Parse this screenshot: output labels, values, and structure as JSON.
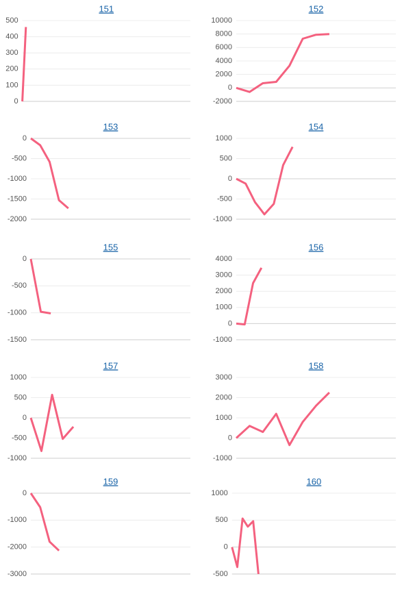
{
  "chart_data": [
    {
      "type": "line",
      "title": "151",
      "color": "#f4617f",
      "grid": true,
      "ylim": [
        0,
        500
      ],
      "yticks": [
        0,
        100,
        200,
        300,
        400,
        500
      ],
      "categories": [
        null,
        null,
        null,
        null,
        null,
        null,
        null,
        null,
        null,
        null,
        null,
        null,
        null,
        null,
        null,
        null,
        null,
        null,
        null,
        null,
        null,
        null,
        null,
        null,
        null,
        null,
        null,
        null,
        null,
        null,
        null,
        null,
        null,
        null,
        null,
        null,
        null,
        null,
        null,
        null,
        null,
        null,
        null,
        null,
        null,
        null,
        null,
        null
      ],
      "values": [
        0,
        460,
        null,
        null,
        null,
        null,
        null,
        null,
        null,
        null,
        null,
        null,
        null,
        null,
        null,
        null,
        null,
        null,
        null,
        null,
        null,
        null,
        null,
        null,
        null,
        null,
        null,
        null,
        null,
        null,
        null,
        null,
        null,
        null,
        null,
        null,
        null,
        null,
        null,
        null,
        null,
        null,
        null,
        null,
        null,
        null,
        null,
        null
      ]
    },
    {
      "type": "line",
      "title": "152",
      "color": "#f4617f",
      "grid": true,
      "ylim": [
        -2000,
        10000
      ],
      "yticks": [
        -2000,
        0,
        2000,
        4000,
        6000,
        8000,
        10000
      ],
      "categories": [
        null,
        null,
        null,
        null,
        null,
        null,
        null,
        null,
        null,
        null,
        null,
        null,
        null
      ],
      "values": [
        0,
        -600,
        700,
        900,
        3300,
        7300,
        7900,
        8000,
        null,
        null,
        null,
        null,
        null
      ]
    },
    {
      "type": "line",
      "title": "153",
      "color": "#f4617f",
      "grid": true,
      "ylim": [
        -2000,
        0
      ],
      "yticks": [
        -2000,
        -1500,
        -1000,
        -500,
        0
      ],
      "categories": [
        null,
        null,
        null,
        null,
        null,
        null,
        null,
        null,
        null,
        null,
        null,
        null,
        null,
        null,
        null,
        null,
        null,
        null
      ],
      "values": [
        0,
        -170,
        -580,
        -1530,
        -1730,
        null,
        null,
        null,
        null,
        null,
        null,
        null,
        null,
        null,
        null,
        null,
        null,
        null
      ]
    },
    {
      "type": "line",
      "title": "154",
      "color": "#f4617f",
      "grid": true,
      "ylim": [
        -1000,
        1000
      ],
      "yticks": [
        -1000,
        -500,
        0,
        500,
        1000
      ],
      "categories": [
        null,
        null,
        null,
        null,
        null,
        null,
        null,
        null,
        null,
        null,
        null,
        null,
        null,
        null,
        null,
        null,
        null,
        null
      ],
      "values": [
        0,
        -120,
        -580,
        -880,
        -620,
        340,
        790,
        null,
        null,
        null,
        null,
        null,
        null,
        null,
        null,
        null,
        null,
        null
      ]
    },
    {
      "type": "line",
      "title": "155",
      "color": "#f4617f",
      "grid": true,
      "ylim": [
        -1500,
        0
      ],
      "yticks": [
        -1500,
        -1000,
        -500,
        0
      ],
      "categories": [
        null,
        null,
        null,
        null,
        null,
        null,
        null,
        null,
        null,
        null,
        null,
        null,
        null,
        null,
        null,
        null,
        null
      ],
      "values": [
        0,
        -980,
        -1010,
        null,
        null,
        null,
        null,
        null,
        null,
        null,
        null,
        null,
        null,
        null,
        null,
        null,
        null
      ]
    },
    {
      "type": "line",
      "title": "156",
      "color": "#f4617f",
      "grid": true,
      "ylim": [
        -1000,
        4000
      ],
      "yticks": [
        -1000,
        0,
        1000,
        2000,
        3000,
        4000
      ],
      "categories": [
        null,
        null,
        null,
        null,
        null,
        null,
        null,
        null,
        null,
        null,
        null,
        null,
        null,
        null,
        null,
        null,
        null,
        null,
        null,
        null
      ],
      "values": [
        0,
        -50,
        2500,
        3450,
        null,
        null,
        null,
        null,
        null,
        null,
        null,
        null,
        null,
        null,
        null,
        null,
        null,
        null,
        null,
        null
      ]
    },
    {
      "type": "line",
      "title": "157",
      "color": "#f4617f",
      "grid": true,
      "ylim": [
        -1000,
        1000
      ],
      "yticks": [
        -1000,
        -500,
        0,
        500,
        1000
      ],
      "categories": [
        null,
        null,
        null,
        null,
        null,
        null,
        null,
        null,
        null,
        null,
        null,
        null,
        null,
        null,
        null,
        null
      ],
      "values": [
        0,
        -820,
        570,
        -520,
        -220,
        null,
        null,
        null,
        null,
        null,
        null,
        null,
        null,
        null,
        null,
        null
      ]
    },
    {
      "type": "line",
      "title": "158",
      "color": "#f4617f",
      "grid": true,
      "ylim": [
        -1000,
        3000
      ],
      "yticks": [
        -1000,
        0,
        1000,
        2000,
        3000
      ],
      "categories": [
        null,
        null,
        null,
        null,
        null,
        null,
        null,
        null,
        null,
        null,
        null,
        null,
        null
      ],
      "values": [
        0,
        600,
        300,
        1200,
        -350,
        800,
        1600,
        2250,
        null,
        null,
        null,
        null,
        null
      ]
    },
    {
      "type": "line",
      "title": "159",
      "color": "#f4617f",
      "grid": true,
      "ylim": [
        -3000,
        0
      ],
      "yticks": [
        -3000,
        -2000,
        -1000,
        0
      ],
      "categories": [
        null,
        null,
        null,
        null,
        null,
        null,
        null,
        null,
        null,
        null,
        null,
        null,
        null,
        null,
        null,
        null,
        null,
        null
      ],
      "values": [
        0,
        -520,
        -1800,
        -2130,
        null,
        null,
        null,
        null,
        null,
        null,
        null,
        null,
        null,
        null,
        null,
        null,
        null,
        null
      ]
    },
    {
      "type": "line",
      "title": "160",
      "color": "#f4617f",
      "grid": true,
      "ylim": [
        -500,
        1000
      ],
      "yticks": [
        -500,
        0,
        500,
        1000
      ],
      "categories": [
        null,
        null,
        null,
        null,
        null,
        null,
        null,
        null,
        null,
        null,
        null,
        null,
        null,
        null,
        null,
        null,
        null,
        null,
        null,
        null,
        null,
        null,
        null,
        null,
        null,
        null,
        null,
        null,
        null,
        null,
        null,
        null
      ],
      "values": [
        0,
        -370,
        530,
        380,
        480,
        -500,
        null,
        null,
        null,
        null,
        null,
        null,
        null,
        null,
        null,
        null,
        null,
        null,
        null,
        null,
        null,
        null,
        null,
        null,
        null,
        null,
        null,
        null,
        null,
        null,
        null,
        null
      ]
    }
  ]
}
